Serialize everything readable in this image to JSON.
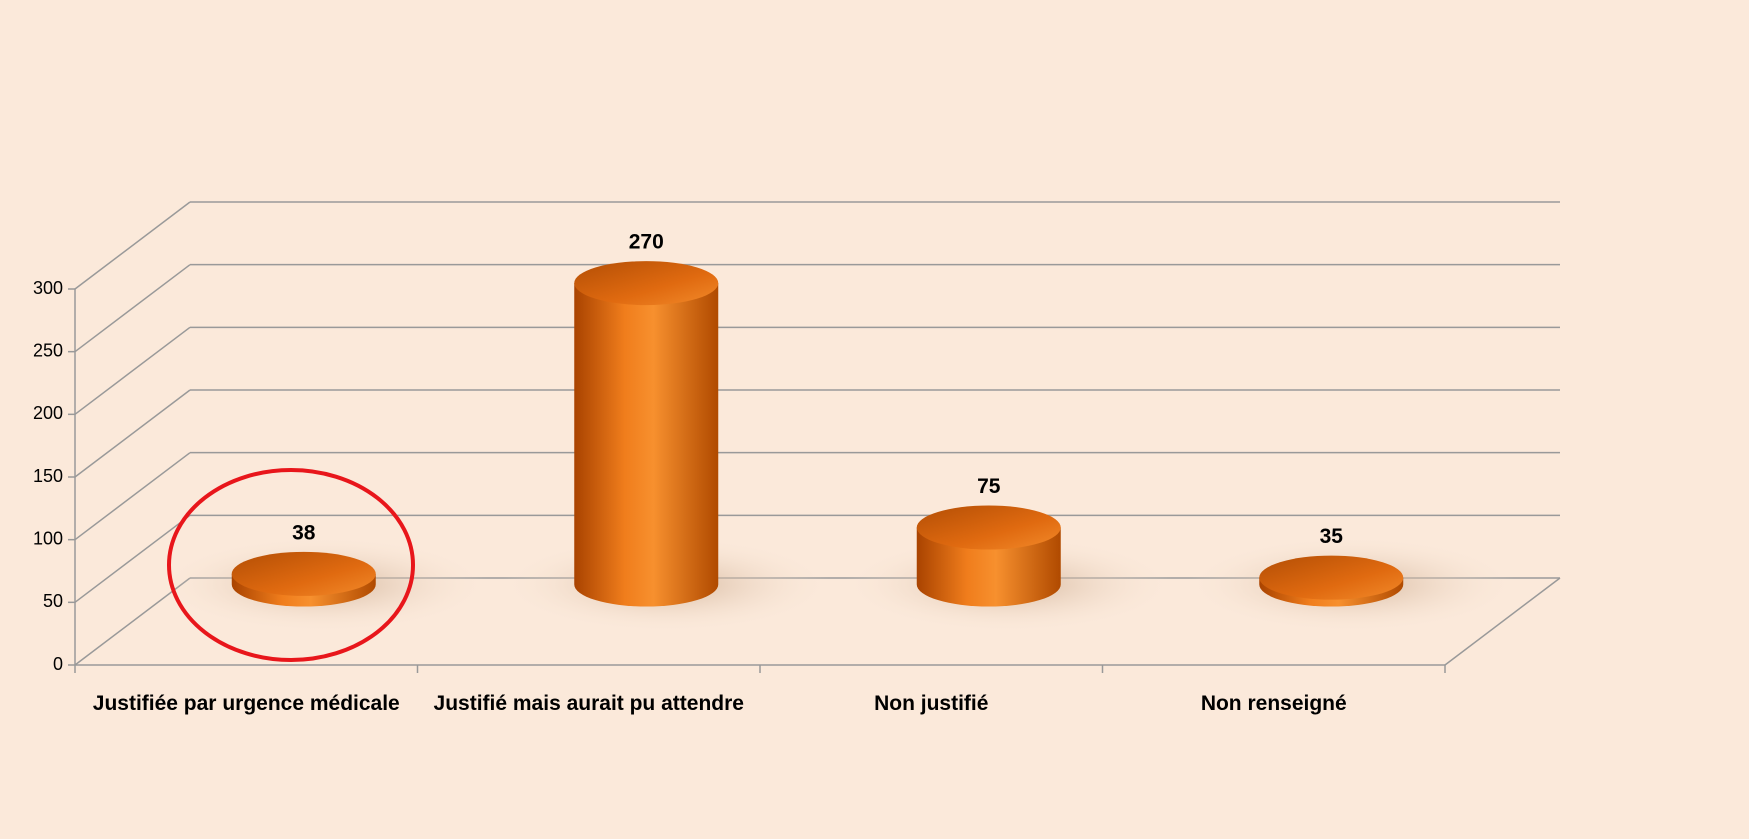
{
  "chart_data": {
    "type": "bar",
    "categories": [
      "Justifiée par urgence médicale",
      "Justifié mais aurait pu attendre",
      "Non justifié",
      "Non renseigné"
    ],
    "values": [
      38,
      270,
      75,
      35
    ],
    "color": "#f07a1a",
    "ylim": [
      0,
      300
    ],
    "yticks": [
      0,
      50,
      100,
      150,
      200,
      250,
      300
    ],
    "grid": true
  }
}
